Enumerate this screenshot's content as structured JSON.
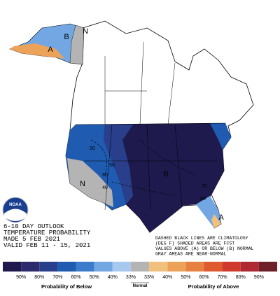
{
  "header": {
    "lines": [
      "6-10 DAY OUTLOOK",
      "TEMPERATURE PROBABILITY",
      "MADE   5 FEB 2021",
      "VALID  FEB 11 - 15, 2021"
    ]
  },
  "notes": [
    "DASHED BLACK LINES ARE CLIMATOLOGY",
    "(DEG F) SHADED AREAS ARE FCST",
    "VALUES ABOVE (A) OR BELOW (B) NORMAL",
    "GRAY AREAS ARE NEAR-NORMAL"
  ],
  "logo": "NOAA",
  "map_labels": [
    "B",
    "N",
    "A",
    "B",
    "N",
    "A",
    "50",
    "60",
    "40",
    "70",
    "80",
    "50"
  ],
  "legend": {
    "colors": [
      "#1e1a4d",
      "#2c2a6c",
      "#2a3f8c",
      "#1f5bb0",
      "#3b7ccd",
      "#72a7e4",
      "#a8c9ef",
      "#b4b4b4",
      "#f1c07c",
      "#eda25a",
      "#e7813f",
      "#df5a2f",
      "#d03a2d",
      "#b02a35",
      "#6e1f27"
    ],
    "labels": [
      "90%",
      "80%",
      "70%",
      "60%",
      "50%",
      "40%",
      "33%",
      "33%",
      "40%",
      "50%",
      "60%",
      "70%",
      "80%",
      "90%"
    ],
    "below": "Probability of Below",
    "normal": "Normal",
    "above": "Probability of Above"
  }
}
